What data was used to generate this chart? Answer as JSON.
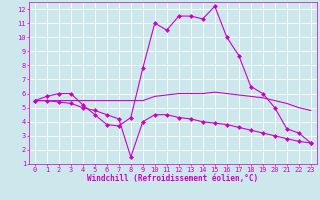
{
  "xlabel": "Windchill (Refroidissement éolien,°C)",
  "bg_color": "#cce8ec",
  "line_color": "#cc00cc",
  "grid_color": "#ffffff",
  "xlim": [
    -0.5,
    23.5
  ],
  "ylim": [
    1,
    12.5
  ],
  "xticks": [
    0,
    1,
    2,
    3,
    4,
    5,
    6,
    7,
    8,
    9,
    10,
    11,
    12,
    13,
    14,
    15,
    16,
    17,
    18,
    19,
    20,
    21,
    22,
    23
  ],
  "yticks": [
    1,
    2,
    3,
    4,
    5,
    6,
    7,
    8,
    9,
    10,
    11,
    12
  ],
  "line1_x": [
    0,
    1,
    2,
    3,
    4,
    5,
    6,
    7,
    8,
    9,
    10,
    11,
    12,
    13,
    14,
    15,
    16,
    17,
    18,
    19,
    20,
    21,
    22,
    23
  ],
  "line1_y": [
    5.5,
    5.8,
    6.0,
    6.0,
    5.2,
    4.5,
    3.8,
    3.7,
    4.3,
    7.8,
    11.0,
    10.5,
    11.5,
    11.5,
    11.3,
    12.2,
    10.0,
    8.7,
    6.5,
    6.0,
    5.0,
    3.5,
    3.2,
    2.5
  ],
  "line2_x": [
    0,
    1,
    2,
    3,
    4,
    5,
    6,
    7,
    8,
    9,
    10,
    11,
    12,
    13,
    14,
    15,
    16,
    17,
    18,
    19,
    20,
    21,
    22,
    23
  ],
  "line2_y": [
    5.5,
    5.5,
    5.5,
    5.5,
    5.5,
    5.5,
    5.5,
    5.5,
    5.5,
    5.5,
    5.8,
    5.9,
    6.0,
    6.0,
    6.0,
    6.1,
    6.0,
    5.9,
    5.8,
    5.7,
    5.5,
    5.3,
    5.0,
    4.8
  ],
  "line3_x": [
    0,
    1,
    2,
    3,
    4,
    5,
    6,
    7,
    8,
    9,
    10,
    11,
    12,
    13,
    14,
    15,
    16,
    17,
    18,
    19,
    20,
    21,
    22,
    23
  ],
  "line3_y": [
    5.5,
    5.5,
    5.4,
    5.3,
    5.0,
    4.8,
    4.5,
    4.2,
    1.5,
    4.0,
    4.5,
    4.5,
    4.3,
    4.2,
    4.0,
    3.9,
    3.8,
    3.6,
    3.4,
    3.2,
    3.0,
    2.8,
    2.6,
    2.5
  ],
  "tick_fontsize": 5,
  "xlabel_fontsize": 5.5,
  "marker_size": 2.5
}
